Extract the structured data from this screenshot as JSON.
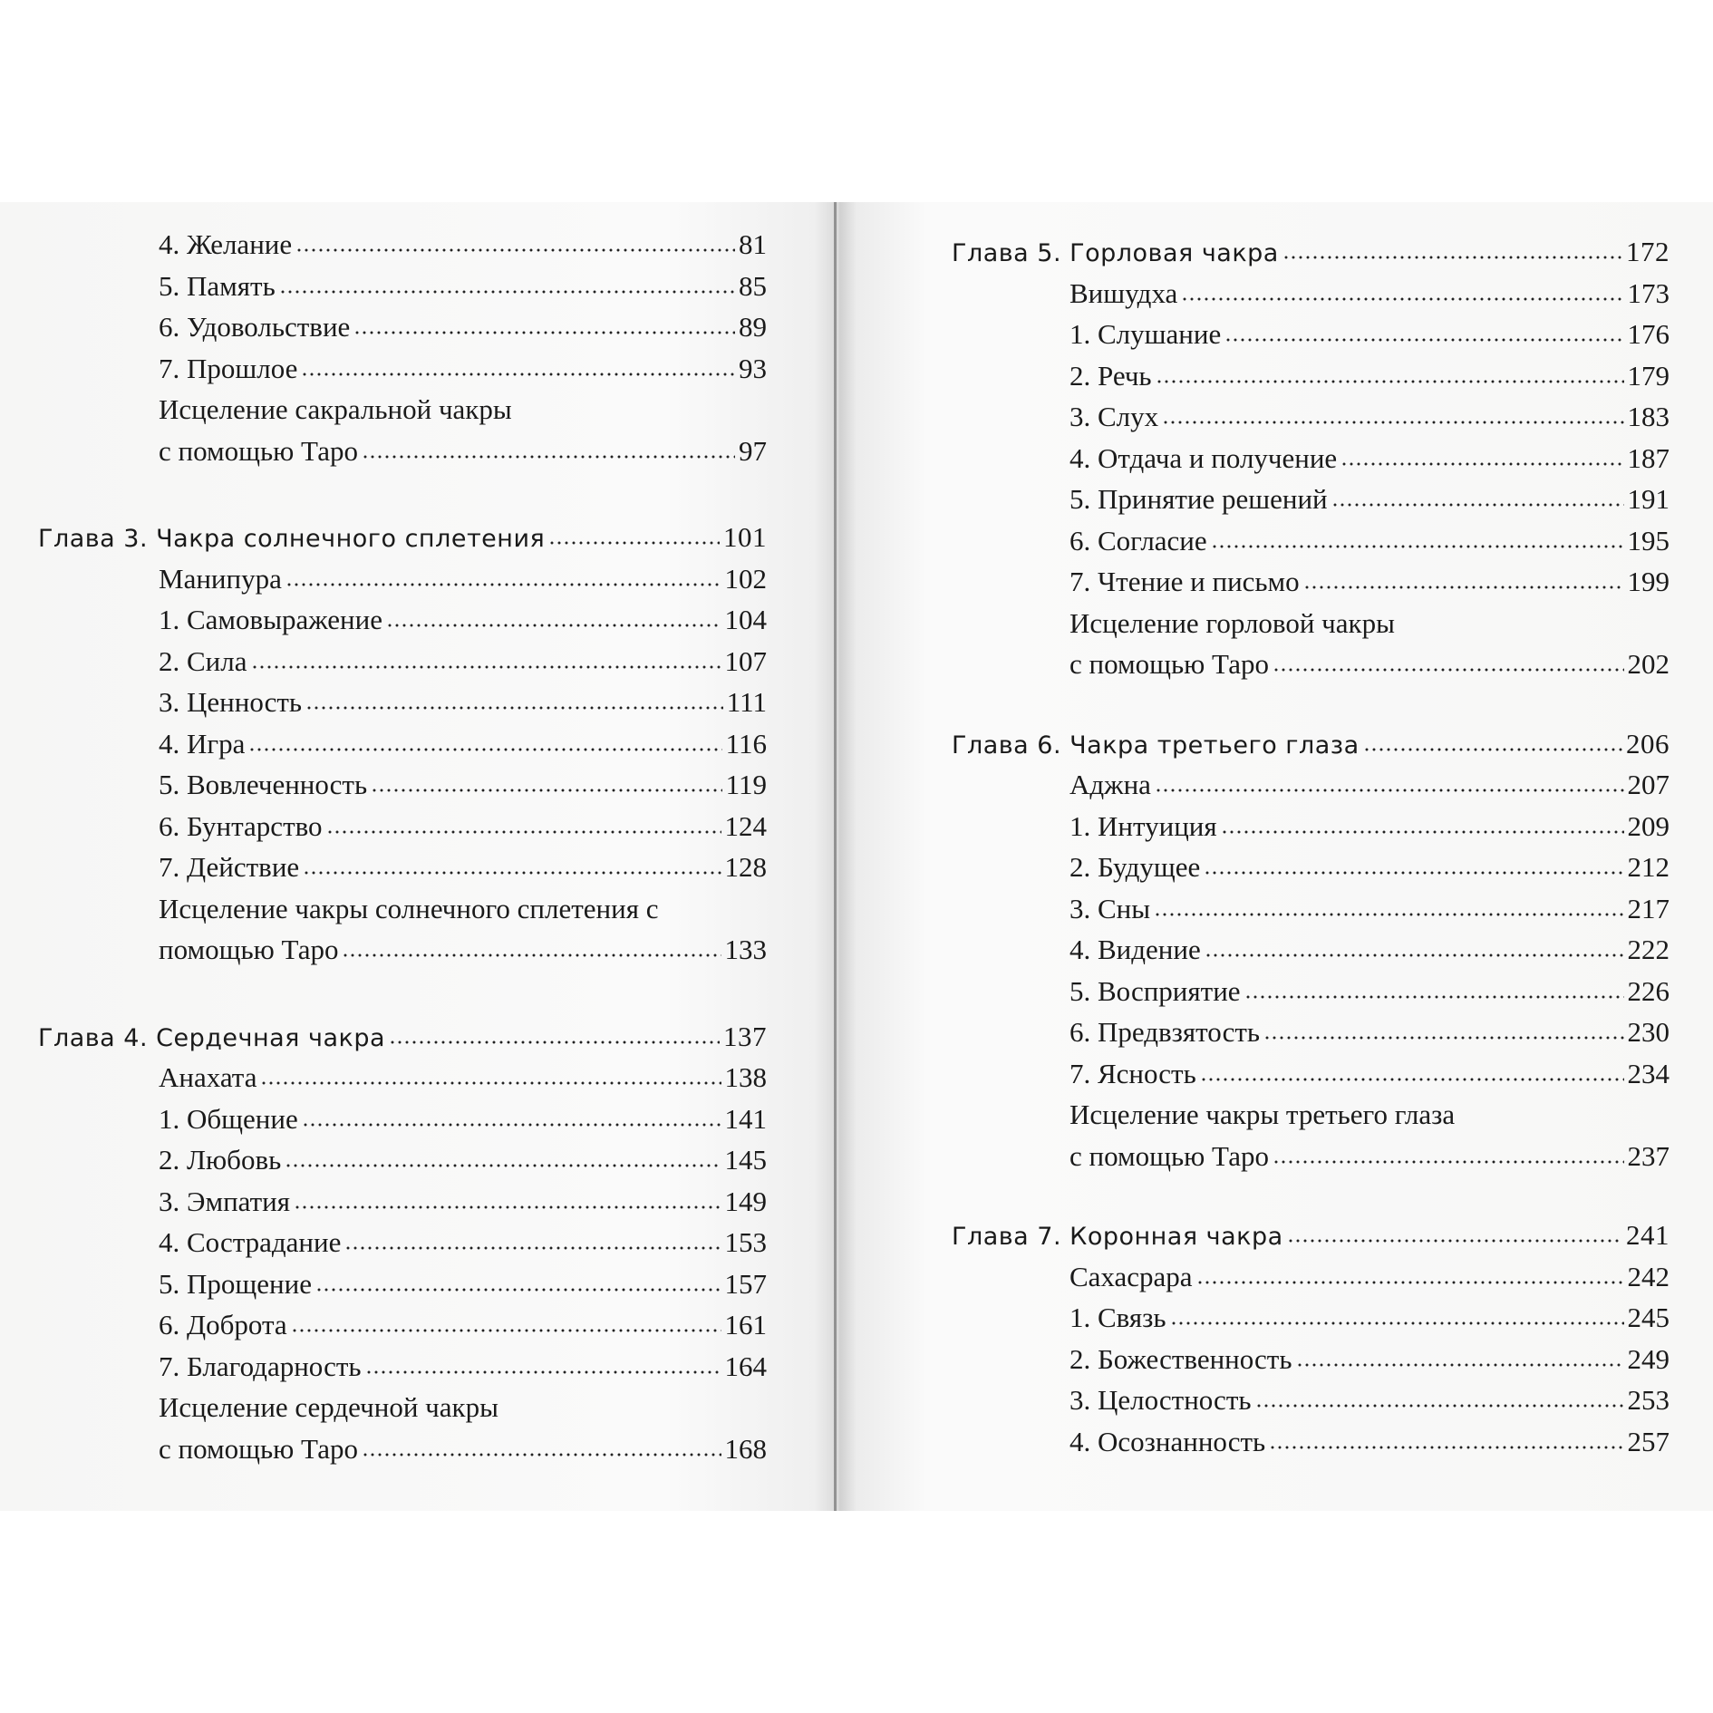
{
  "left_page": {
    "entries": [
      {
        "type": "item",
        "title": "4. Желание",
        "page": "81"
      },
      {
        "type": "item",
        "title": "5. Память",
        "page": "85"
      },
      {
        "type": "item",
        "title": "6. Удовольствие",
        "page": "89"
      },
      {
        "type": "item",
        "title": "7. Прошлое",
        "page": "93"
      },
      {
        "type": "item",
        "title": "Исцеление сакральной чакры"
      },
      {
        "type": "item",
        "title": "с помощью Таро",
        "page": "97"
      },
      {
        "type": "chapter",
        "title": "Глава 3. Чакра солнечного сплетения",
        "page": "101"
      },
      {
        "type": "item",
        "title": "Манипура",
        "page": "102"
      },
      {
        "type": "item",
        "title": "1. Самовыражение",
        "page": "104"
      },
      {
        "type": "item",
        "title": "2. Сила",
        "page": "107"
      },
      {
        "type": "item",
        "title": "3. Ценность",
        "page": "111"
      },
      {
        "type": "item",
        "title": "4. Игра",
        "page": "116"
      },
      {
        "type": "item",
        "title": "5. Вовлеченность",
        "page": "119"
      },
      {
        "type": "item",
        "title": "6. Бунтарство",
        "page": "124"
      },
      {
        "type": "item",
        "title": "7. Действие",
        "page": "128"
      },
      {
        "type": "item",
        "title": "Исцеление чакры солнечного сплетения с"
      },
      {
        "type": "item",
        "title": "помощью Таро",
        "page": "133"
      },
      {
        "type": "chapter",
        "title": "Глава 4. Сердечная чакра",
        "page": "137"
      },
      {
        "type": "item",
        "title": "Анахата",
        "page": "138"
      },
      {
        "type": "item",
        "title": "1. Общение",
        "page": "141"
      },
      {
        "type": "item",
        "title": "2. Любовь",
        "page": "145"
      },
      {
        "type": "item",
        "title": "3. Эмпатия",
        "page": "149"
      },
      {
        "type": "item",
        "title": "4. Сострадание",
        "page": "153"
      },
      {
        "type": "item",
        "title": "5. Прощение",
        "page": "157"
      },
      {
        "type": "item",
        "title": "6. Доброта",
        "page": "161"
      },
      {
        "type": "item",
        "title": "7. Благодарность",
        "page": "164"
      },
      {
        "type": "item",
        "title": "Исцеление сердечной чакры"
      },
      {
        "type": "item",
        "title": "с помощью Таро",
        "page": "168"
      }
    ]
  },
  "right_page": {
    "entries": [
      {
        "type": "chapter",
        "title": "Глава 5. Горловая чакра",
        "page": "172"
      },
      {
        "type": "item",
        "title": "Вишудха",
        "page": "173"
      },
      {
        "type": "item",
        "title": "1. Слушание",
        "page": "176"
      },
      {
        "type": "item",
        "title": "2. Речь",
        "page": "179"
      },
      {
        "type": "item",
        "title": "3. Слух",
        "page": "183"
      },
      {
        "type": "item",
        "title": "4. Отдача и получение",
        "page": "187"
      },
      {
        "type": "item",
        "title": "5. Принятие решений",
        "page": "191"
      },
      {
        "type": "item",
        "title": "6. Согласие",
        "page": "195"
      },
      {
        "type": "item",
        "title": "7. Чтение и письмо",
        "page": "199"
      },
      {
        "type": "item",
        "title": "Исцеление горловой чакры"
      },
      {
        "type": "item",
        "title": "с помощью Таро",
        "page": "202"
      },
      {
        "type": "chapter",
        "title": "Глава 6. Чакра третьего глаза",
        "page": "206"
      },
      {
        "type": "item",
        "title": "Аджна",
        "page": "207"
      },
      {
        "type": "item",
        "title": "1. Интуиция",
        "page": "209"
      },
      {
        "type": "item",
        "title": "2. Будущее",
        "page": "212"
      },
      {
        "type": "item",
        "title": "3. Сны",
        "page": "217"
      },
      {
        "type": "item",
        "title": "4. Видение",
        "page": "222"
      },
      {
        "type": "item",
        "title": "5. Восприятие",
        "page": "226"
      },
      {
        "type": "item",
        "title": "6. Предвзятость",
        "page": "230"
      },
      {
        "type": "item",
        "title": "7. Ясность",
        "page": "234"
      },
      {
        "type": "item",
        "title": "Исцеление чакры третьего глаза"
      },
      {
        "type": "item",
        "title": "с помощью Таро",
        "page": "237"
      },
      {
        "type": "chapter",
        "title": "Глава 7. Коронная чакра",
        "page": "241"
      },
      {
        "type": "item",
        "title": "Сахасрара",
        "page": "242"
      },
      {
        "type": "item",
        "title": "1. Связь",
        "page": "245"
      },
      {
        "type": "item",
        "title": "2. Божественность",
        "page": "249"
      },
      {
        "type": "item",
        "title": "3. Целостность",
        "page": "253"
      },
      {
        "type": "item",
        "title": "4. Осознанность",
        "page": "257"
      }
    ]
  }
}
